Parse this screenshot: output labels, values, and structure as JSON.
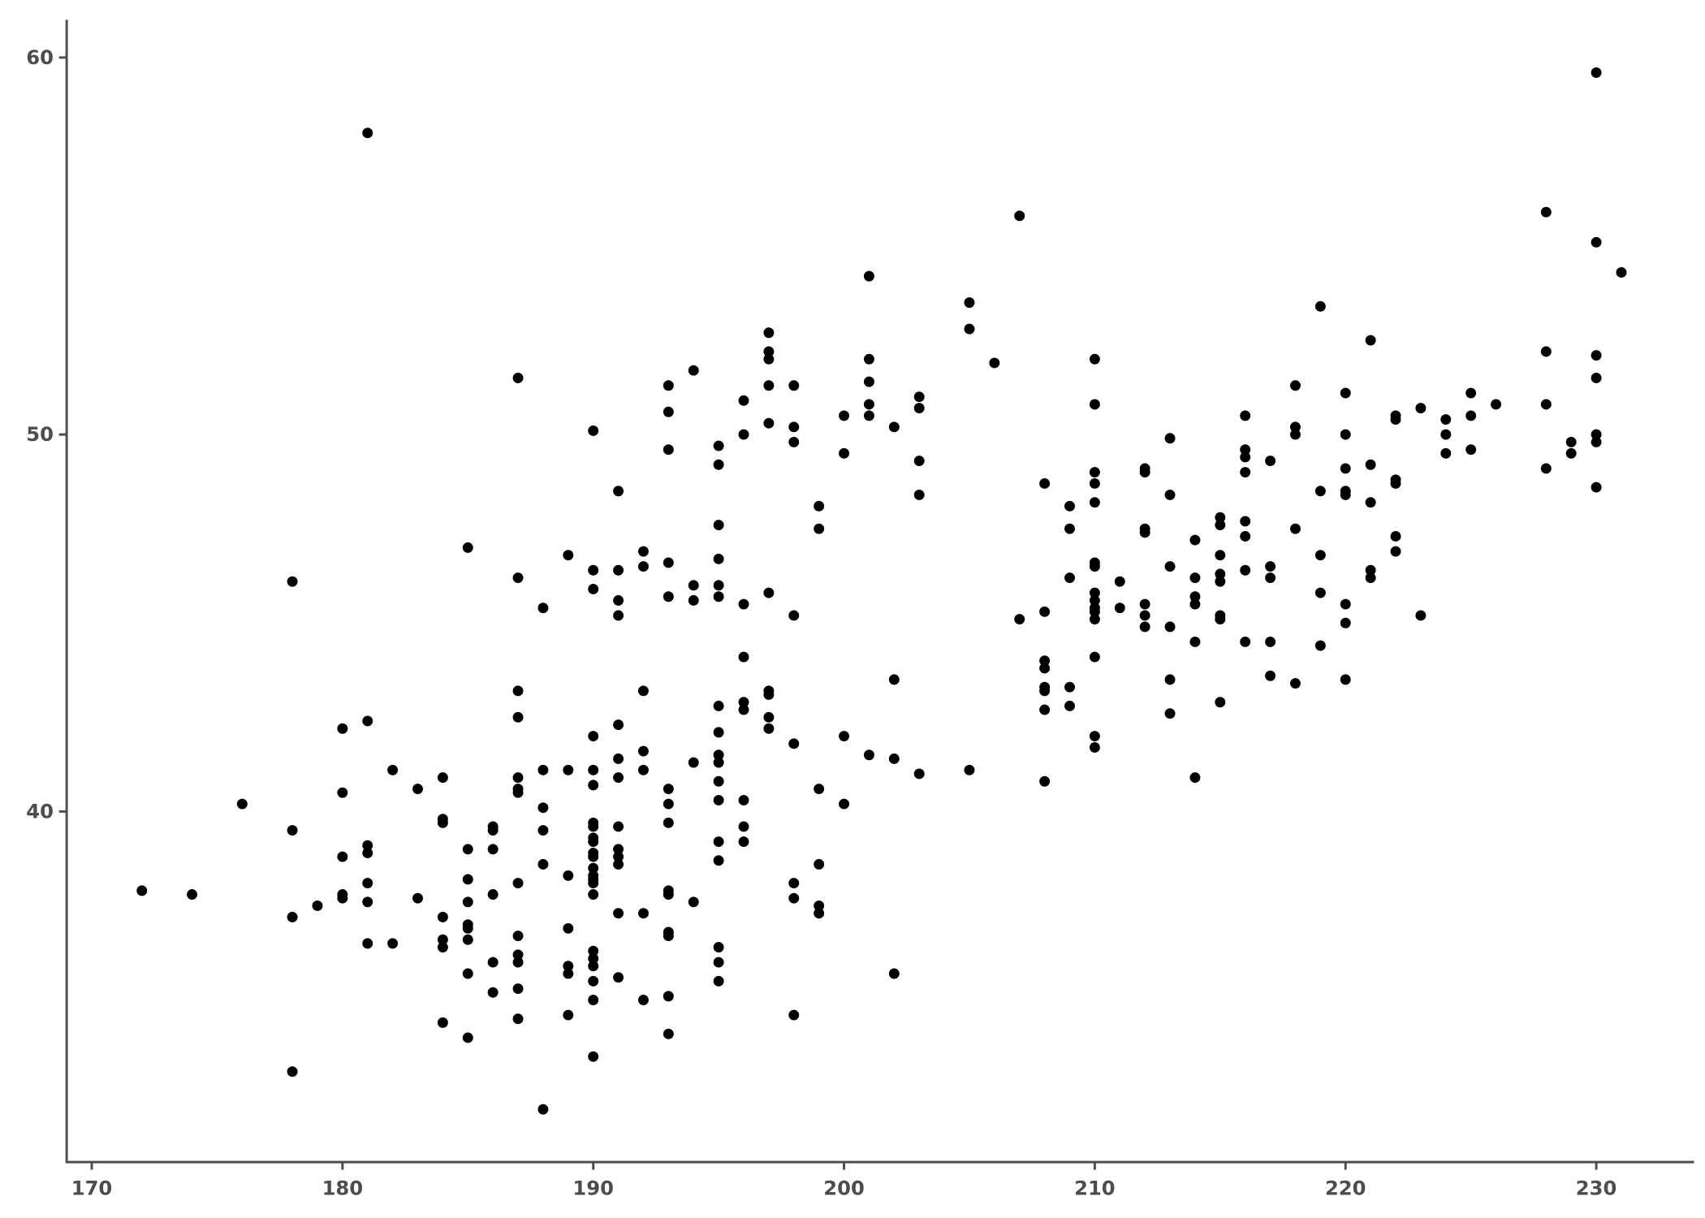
{
  "chart_data": {
    "type": "scatter",
    "title": "",
    "xlabel": "",
    "ylabel": "",
    "xlim": [
      169.0,
      233.9
    ],
    "ylim": [
      30.7,
      61.0
    ],
    "xticks": [
      170,
      180,
      190,
      200,
      210,
      220,
      230
    ],
    "yticks": [
      40,
      50,
      60
    ],
    "xtick_labels": [
      "170",
      "180",
      "190",
      "200",
      "210",
      "220",
      "230"
    ],
    "ytick_labels": [
      "40",
      "50",
      "60"
    ],
    "grid": false,
    "point_color": "#000000",
    "axis_color": "#4d4d4d",
    "points": [
      [
        172,
        37.9
      ],
      [
        174,
        37.8
      ],
      [
        176,
        40.2
      ],
      [
        178,
        46.1
      ],
      [
        178,
        39.5
      ],
      [
        178,
        37.2
      ],
      [
        178,
        33.1
      ],
      [
        179,
        37.5
      ],
      [
        180,
        42.2
      ],
      [
        180,
        40.5
      ],
      [
        180,
        38.8
      ],
      [
        180,
        37.8
      ],
      [
        180,
        37.7
      ],
      [
        181,
        58.0
      ],
      [
        181,
        42.4
      ],
      [
        181,
        39.1
      ],
      [
        181,
        38.9
      ],
      [
        181,
        38.1
      ],
      [
        181,
        37.6
      ],
      [
        181,
        36.5
      ],
      [
        182,
        41.1
      ],
      [
        182,
        36.5
      ],
      [
        183,
        40.6
      ],
      [
        183,
        37.7
      ],
      [
        184,
        40.9
      ],
      [
        184,
        39.8
      ],
      [
        184,
        39.7
      ],
      [
        184,
        37.2
      ],
      [
        184,
        36.6
      ],
      [
        184,
        36.4
      ],
      [
        184,
        34.4
      ],
      [
        185,
        47.0
      ],
      [
        185,
        39.0
      ],
      [
        185,
        38.2
      ],
      [
        185,
        37.6
      ],
      [
        185,
        37.0
      ],
      [
        185,
        36.9
      ],
      [
        185,
        36.6
      ],
      [
        185,
        35.7
      ],
      [
        185,
        34.0
      ],
      [
        186,
        39.6
      ],
      [
        186,
        39.5
      ],
      [
        186,
        39.0
      ],
      [
        186,
        37.8
      ],
      [
        186,
        36.0
      ],
      [
        186,
        35.2
      ],
      [
        187,
        51.5
      ],
      [
        187,
        46.2
      ],
      [
        187,
        43.2
      ],
      [
        187,
        42.5
      ],
      [
        187,
        40.9
      ],
      [
        187,
        40.6
      ],
      [
        187,
        40.5
      ],
      [
        187,
        38.1
      ],
      [
        187,
        36.7
      ],
      [
        187,
        36.2
      ],
      [
        187,
        36.0
      ],
      [
        187,
        35.3
      ],
      [
        187,
        34.5
      ],
      [
        188,
        45.4
      ],
      [
        188,
        41.1
      ],
      [
        188,
        40.1
      ],
      [
        188,
        39.5
      ],
      [
        188,
        38.6
      ],
      [
        188,
        32.1
      ],
      [
        189,
        46.8
      ],
      [
        189,
        41.1
      ],
      [
        189,
        38.3
      ],
      [
        189,
        36.9
      ],
      [
        189,
        35.9
      ],
      [
        189,
        35.7
      ],
      [
        189,
        34.6
      ],
      [
        190,
        50.1
      ],
      [
        190,
        46.4
      ],
      [
        190,
        45.9
      ],
      [
        190,
        42.0
      ],
      [
        190,
        41.1
      ],
      [
        190,
        40.7
      ],
      [
        190,
        39.7
      ],
      [
        190,
        39.6
      ],
      [
        190,
        39.3
      ],
      [
        190,
        39.2
      ],
      [
        190,
        38.9
      ],
      [
        190,
        38.8
      ],
      [
        190,
        38.5
      ],
      [
        190,
        38.3
      ],
      [
        190,
        38.2
      ],
      [
        190,
        38.1
      ],
      [
        190,
        37.8
      ],
      [
        190,
        36.3
      ],
      [
        190,
        36.1
      ],
      [
        190,
        35.9
      ],
      [
        190,
        35.5
      ],
      [
        190,
        35.0
      ],
      [
        190,
        33.5
      ],
      [
        191,
        48.5
      ],
      [
        191,
        46.4
      ],
      [
        191,
        45.6
      ],
      [
        191,
        45.2
      ],
      [
        191,
        42.3
      ],
      [
        191,
        41.4
      ],
      [
        191,
        40.9
      ],
      [
        191,
        39.6
      ],
      [
        191,
        39.0
      ],
      [
        191,
        38.8
      ],
      [
        191,
        38.6
      ],
      [
        191,
        37.3
      ],
      [
        191,
        35.6
      ],
      [
        192,
        46.9
      ],
      [
        192,
        46.5
      ],
      [
        192,
        43.2
      ],
      [
        192,
        41.6
      ],
      [
        192,
        41.1
      ],
      [
        192,
        37.3
      ],
      [
        192,
        35.0
      ],
      [
        193,
        51.3
      ],
      [
        193,
        50.6
      ],
      [
        193,
        49.6
      ],
      [
        193,
        46.6
      ],
      [
        193,
        45.7
      ],
      [
        193,
        40.6
      ],
      [
        193,
        40.2
      ],
      [
        193,
        39.7
      ],
      [
        193,
        37.9
      ],
      [
        193,
        37.8
      ],
      [
        193,
        36.8
      ],
      [
        193,
        36.7
      ],
      [
        193,
        35.1
      ],
      [
        193,
        34.1
      ],
      [
        194,
        51.7
      ],
      [
        194,
        46.0
      ],
      [
        194,
        45.6
      ],
      [
        194,
        41.3
      ],
      [
        194,
        37.6
      ],
      [
        195,
        49.7
      ],
      [
        195,
        49.2
      ],
      [
        195,
        47.6
      ],
      [
        195,
        46.7
      ],
      [
        195,
        46.0
      ],
      [
        195,
        45.7
      ],
      [
        195,
        42.8
      ],
      [
        195,
        42.1
      ],
      [
        195,
        41.5
      ],
      [
        195,
        41.3
      ],
      [
        195,
        40.8
      ],
      [
        195,
        40.3
      ],
      [
        195,
        39.2
      ],
      [
        195,
        38.7
      ],
      [
        195,
        36.4
      ],
      [
        195,
        36.0
      ],
      [
        195,
        35.5
      ],
      [
        196,
        50.9
      ],
      [
        196,
        50.0
      ],
      [
        196,
        45.5
      ],
      [
        196,
        44.1
      ],
      [
        196,
        42.9
      ],
      [
        196,
        42.7
      ],
      [
        196,
        40.3
      ],
      [
        196,
        39.6
      ],
      [
        196,
        39.2
      ],
      [
        197,
        52.7
      ],
      [
        197,
        52.2
      ],
      [
        197,
        52.0
      ],
      [
        197,
        51.3
      ],
      [
        197,
        50.3
      ],
      [
        197,
        45.8
      ],
      [
        197,
        43.2
      ],
      [
        197,
        43.1
      ],
      [
        197,
        42.5
      ],
      [
        197,
        42.2
      ],
      [
        198,
        51.3
      ],
      [
        198,
        50.2
      ],
      [
        198,
        49.8
      ],
      [
        198,
        45.2
      ],
      [
        198,
        41.8
      ],
      [
        198,
        38.1
      ],
      [
        198,
        37.7
      ],
      [
        198,
        34.6
      ],
      [
        199,
        48.1
      ],
      [
        199,
        47.5
      ],
      [
        199,
        40.6
      ],
      [
        199,
        38.6
      ],
      [
        199,
        37.5
      ],
      [
        199,
        37.3
      ],
      [
        200,
        50.5
      ],
      [
        200,
        49.5
      ],
      [
        200,
        42.0
      ],
      [
        200,
        40.2
      ],
      [
        201,
        54.2
      ],
      [
        201,
        52.0
      ],
      [
        201,
        51.4
      ],
      [
        201,
        50.8
      ],
      [
        201,
        50.5
      ],
      [
        201,
        41.5
      ],
      [
        202,
        50.2
      ],
      [
        202,
        43.5
      ],
      [
        202,
        41.4
      ],
      [
        202,
        35.7
      ],
      [
        203,
        51.0
      ],
      [
        203,
        50.7
      ],
      [
        203,
        49.3
      ],
      [
        203,
        48.4
      ],
      [
        203,
        41.0
      ],
      [
        205,
        53.5
      ],
      [
        205,
        52.8
      ],
      [
        205,
        41.1
      ],
      [
        206,
        51.9
      ],
      [
        207,
        55.8
      ],
      [
        207,
        45.1
      ],
      [
        208,
        48.7
      ],
      [
        208,
        45.3
      ],
      [
        208,
        44.0
      ],
      [
        208,
        43.8
      ],
      [
        208,
        43.3
      ],
      [
        208,
        43.2
      ],
      [
        208,
        42.7
      ],
      [
        208,
        40.8
      ],
      [
        209,
        48.1
      ],
      [
        209,
        47.5
      ],
      [
        209,
        46.2
      ],
      [
        209,
        43.3
      ],
      [
        209,
        42.8
      ],
      [
        210,
        52.0
      ],
      [
        210,
        50.8
      ],
      [
        210,
        49.0
      ],
      [
        210,
        48.7
      ],
      [
        210,
        48.2
      ],
      [
        210,
        46.6
      ],
      [
        210,
        46.5
      ],
      [
        210,
        45.8
      ],
      [
        210,
        45.6
      ],
      [
        210,
        45.4
      ],
      [
        210,
        45.3
      ],
      [
        210,
        45.1
      ],
      [
        210,
        44.1
      ],
      [
        210,
        42.0
      ],
      [
        210,
        41.7
      ],
      [
        211,
        46.1
      ],
      [
        211,
        45.4
      ],
      [
        212,
        49.1
      ],
      [
        212,
        49.0
      ],
      [
        212,
        47.5
      ],
      [
        212,
        47.4
      ],
      [
        212,
        45.5
      ],
      [
        212,
        45.2
      ],
      [
        212,
        44.9
      ],
      [
        213,
        49.9
      ],
      [
        213,
        48.4
      ],
      [
        213,
        46.5
      ],
      [
        213,
        44.9
      ],
      [
        213,
        43.5
      ],
      [
        213,
        42.6
      ],
      [
        214,
        47.2
      ],
      [
        214,
        46.2
      ],
      [
        214,
        45.7
      ],
      [
        214,
        45.5
      ],
      [
        214,
        44.5
      ],
      [
        214,
        40.9
      ],
      [
        215,
        47.8
      ],
      [
        215,
        47.6
      ],
      [
        215,
        46.8
      ],
      [
        215,
        46.3
      ],
      [
        215,
        46.1
      ],
      [
        215,
        45.2
      ],
      [
        215,
        45.1
      ],
      [
        215,
        42.9
      ],
      [
        216,
        50.5
      ],
      [
        216,
        49.6
      ],
      [
        216,
        49.4
      ],
      [
        216,
        49.0
      ],
      [
        216,
        47.7
      ],
      [
        216,
        47.3
      ],
      [
        216,
        46.4
      ],
      [
        216,
        44.5
      ],
      [
        217,
        49.3
      ],
      [
        217,
        46.5
      ],
      [
        217,
        46.2
      ],
      [
        217,
        44.5
      ],
      [
        217,
        43.6
      ],
      [
        218,
        51.3
      ],
      [
        218,
        50.2
      ],
      [
        218,
        50.0
      ],
      [
        218,
        47.5
      ],
      [
        218,
        43.4
      ],
      [
        219,
        53.4
      ],
      [
        219,
        48.5
      ],
      [
        219,
        46.8
      ],
      [
        219,
        45.8
      ],
      [
        219,
        44.4
      ],
      [
        220,
        51.1
      ],
      [
        220,
        50.0
      ],
      [
        220,
        49.1
      ],
      [
        220,
        48.5
      ],
      [
        220,
        48.4
      ],
      [
        220,
        45.5
      ],
      [
        220,
        45.0
      ],
      [
        220,
        43.5
      ],
      [
        221,
        52.5
      ],
      [
        221,
        49.2
      ],
      [
        221,
        48.2
      ],
      [
        221,
        46.4
      ],
      [
        221,
        46.2
      ],
      [
        222,
        50.5
      ],
      [
        222,
        50.4
      ],
      [
        222,
        48.8
      ],
      [
        222,
        48.7
      ],
      [
        222,
        47.3
      ],
      [
        222,
        46.9
      ],
      [
        223,
        50.7
      ],
      [
        223,
        45.2
      ],
      [
        224,
        50.4
      ],
      [
        224,
        50.0
      ],
      [
        224,
        49.5
      ],
      [
        225,
        51.1
      ],
      [
        225,
        50.5
      ],
      [
        225,
        49.6
      ],
      [
        226,
        50.8
      ],
      [
        228,
        55.9
      ],
      [
        228,
        52.2
      ],
      [
        228,
        50.8
      ],
      [
        228,
        49.1
      ],
      [
        229,
        49.8
      ],
      [
        229,
        49.5
      ],
      [
        230,
        59.6
      ],
      [
        230,
        55.1
      ],
      [
        230,
        52.1
      ],
      [
        230,
        51.5
      ],
      [
        230,
        50.0
      ],
      [
        230,
        49.8
      ],
      [
        230,
        48.6
      ],
      [
        231,
        54.3
      ]
    ]
  }
}
